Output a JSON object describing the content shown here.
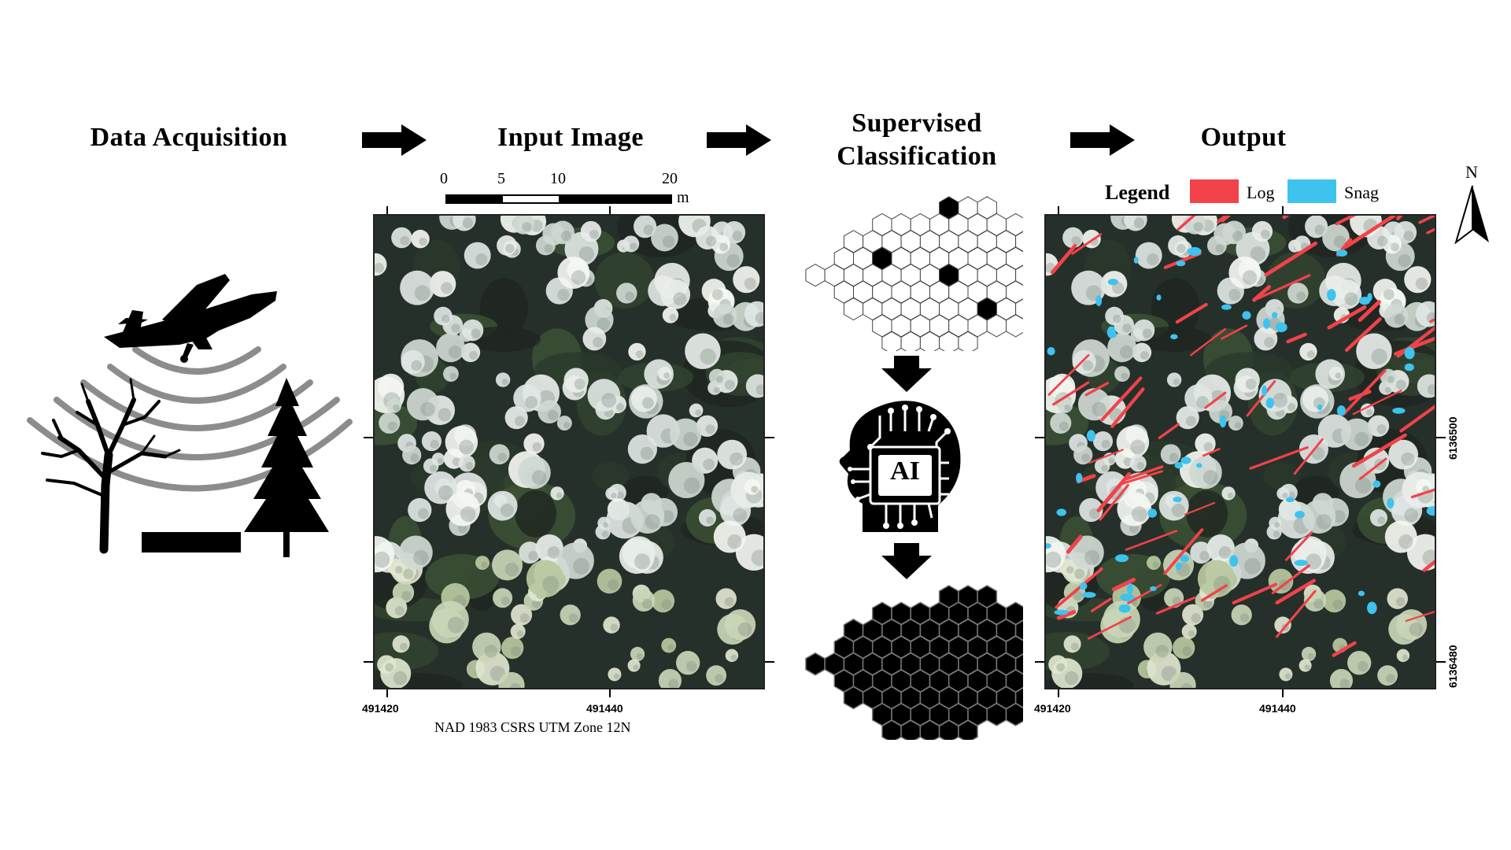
{
  "stages": {
    "acquisition": "Data Acquisition",
    "input": "Input Image",
    "classification_line1": "Supervised",
    "classification_line2": "Classification",
    "output": "Output"
  },
  "scale_bar": {
    "ticks": [
      "0",
      "5",
      "10",
      "20"
    ],
    "unit": "m"
  },
  "coordinates": {
    "x_left": "491420",
    "x_right": "491440",
    "y_upper": "6136500",
    "y_lower": "6136480"
  },
  "crs_label": "NAD 1983 CSRS UTM Zone 12N",
  "legend": {
    "title": "Legend",
    "items": [
      {
        "label": "Log",
        "color": "#f2424a"
      },
      {
        "label": "Snag",
        "color": "#3ec3ee"
      }
    ]
  },
  "north_label": "N",
  "ai_label": "AI",
  "colors": {
    "log": "#f2424a",
    "snag": "#3ec3ee",
    "canopy_dark": "#26302a",
    "crown_light": "#e9eeea"
  }
}
